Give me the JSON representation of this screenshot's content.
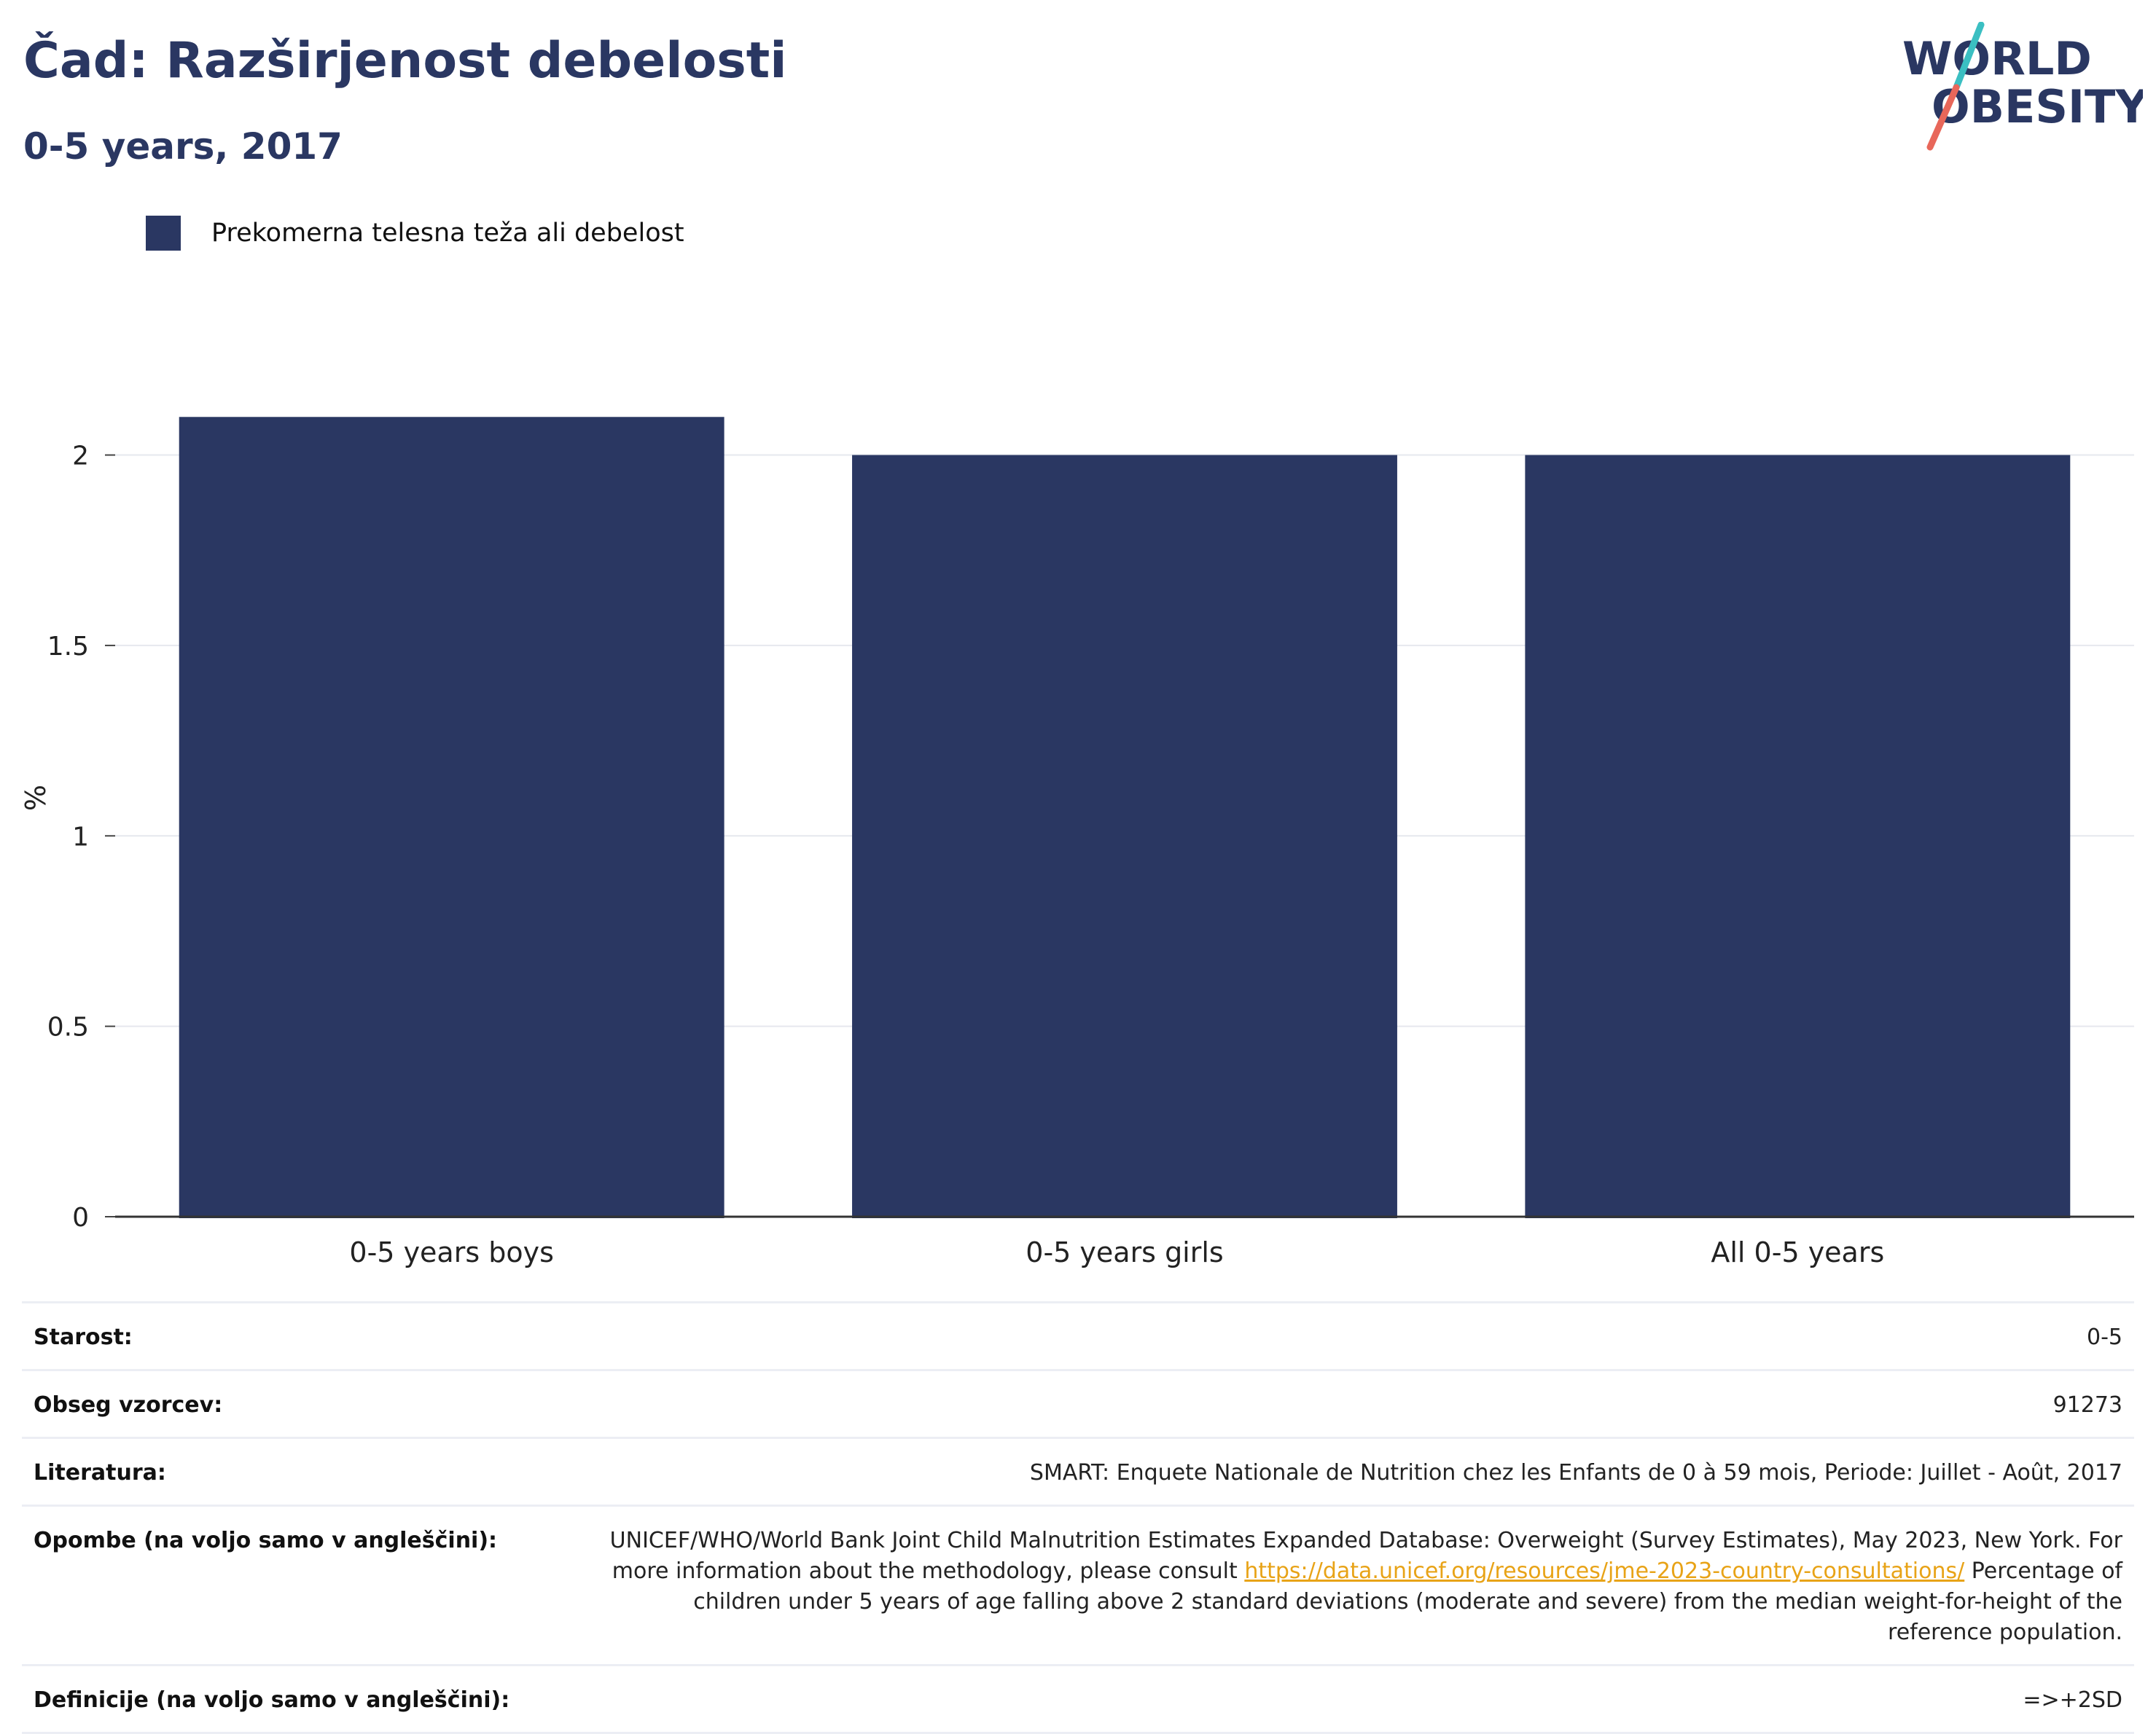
{
  "header": {
    "title": "Čad: Razširjenost debelosti",
    "subtitle": "0-5 years, 2017"
  },
  "logo": {
    "line1": "WORLD",
    "line2": "OBESITY",
    "slash_color_top": "#3bbfc2",
    "slash_color_bottom": "#e8675a"
  },
  "legend": {
    "label": "Prekomerna telesna teža ali debelost",
    "color": "#2a3762"
  },
  "chart_data": {
    "type": "bar",
    "categories": [
      "0-5 years boys",
      "0-5 years girls",
      "All 0-5 years"
    ],
    "series": [
      {
        "name": "Prekomerna telesna teža ali debelost",
        "values": [
          2.1,
          2.0,
          2.0
        ],
        "color": "#2a3762"
      }
    ],
    "ylabel": "%",
    "ylim": [
      0,
      2.2
    ],
    "yticks": [
      0,
      0.5,
      1,
      1.5,
      2
    ],
    "ytick_labels": [
      "0",
      "0.5",
      "1",
      "1.5",
      "2"
    ],
    "grid": true,
    "legend_position": "top-left"
  },
  "info": {
    "rows": [
      {
        "key": "Starost:",
        "value": "0-5"
      },
      {
        "key": "Obseg vzorcev:",
        "value": "91273"
      },
      {
        "key": "Literatura:",
        "value": "SMART: Enquete Nationale de Nutrition chez les Enfants de 0 à 59 mois, Periode: Juillet - Août, 2017"
      },
      {
        "key": "Definicije (na voljo samo v angleščini):",
        "value": "=>+2SD"
      }
    ],
    "notes": {
      "key": "Opombe (na voljo samo v angleščini):",
      "text_before": "UNICEF/WHO/World Bank Joint Child Malnutrition Estimates Expanded Database: Overweight (Survey Estimates), May 2023, New York. For more information about the methodology, please consult ",
      "link": "https://data.unicef.org/resources/jme-2023-country-consultations/",
      "text_after": " Percentage of children under 5 years of age falling above 2 standard deviations (moderate and severe) from the median weight-for-height of the reference population."
    }
  }
}
